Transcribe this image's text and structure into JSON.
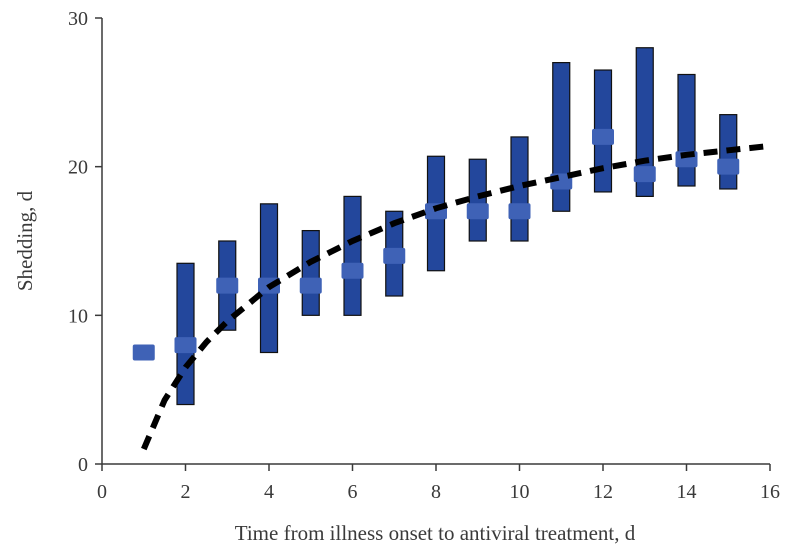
{
  "chart_data": {
    "type": "error-bar-with-trend",
    "title": "",
    "xlabel": "Time from illness onset to antiviral treatment, d",
    "ylabel": "Shedding, d",
    "xlim": [
      0,
      16
    ],
    "ylim": [
      0,
      30
    ],
    "x_ticks": [
      0,
      2,
      4,
      6,
      8,
      10,
      12,
      14,
      16
    ],
    "y_ticks": [
      0,
      10,
      20,
      30
    ],
    "grid": false,
    "legend": "none",
    "colors": {
      "bar": "#23479c",
      "bar_edge": "#111111",
      "median": "#3f62b6",
      "trend": "#000000",
      "axis": "#3a3a3a"
    },
    "series": [
      {
        "type": "range",
        "points": [
          {
            "x": 1,
            "median": 7.5,
            "low": 7.5,
            "high": 7.5
          },
          {
            "x": 2,
            "median": 8,
            "low": 4,
            "high": 13.5
          },
          {
            "x": 3,
            "median": 12,
            "low": 9,
            "high": 15
          },
          {
            "x": 4,
            "median": 12,
            "low": 7.5,
            "high": 17.5
          },
          {
            "x": 5,
            "median": 12,
            "low": 10,
            "high": 15.7
          },
          {
            "x": 6,
            "median": 13,
            "low": 10,
            "high": 18
          },
          {
            "x": 7,
            "median": 14,
            "low": 11.3,
            "high": 17
          },
          {
            "x": 8,
            "median": 17,
            "low": 13,
            "high": 20.7
          },
          {
            "x": 9,
            "median": 17,
            "low": 15,
            "high": 20.5
          },
          {
            "x": 10,
            "median": 17,
            "low": 15,
            "high": 22
          },
          {
            "x": 11,
            "median": 19,
            "low": 17,
            "high": 27
          },
          {
            "x": 12,
            "median": 22,
            "low": 18.3,
            "high": 26.5
          },
          {
            "x": 13,
            "median": 19.5,
            "low": 18,
            "high": 28
          },
          {
            "x": 14,
            "median": 20.5,
            "low": 18.7,
            "high": 26.2
          },
          {
            "x": 15,
            "median": 20,
            "low": 18.5,
            "high": 23.5
          }
        ]
      },
      {
        "type": "trend-dashed",
        "x": [
          1,
          1.5,
          2,
          2.5,
          3,
          4,
          5,
          6,
          7,
          8,
          9,
          10,
          11,
          12,
          13,
          14,
          15,
          16
        ],
        "values": [
          1,
          4.3,
          6.5,
          8.2,
          9.6,
          11.9,
          13.6,
          15.0,
          16.2,
          17.2,
          18.0,
          18.7,
          19.3,
          19.9,
          20.4,
          20.8,
          21.1,
          21.4
        ]
      }
    ]
  }
}
